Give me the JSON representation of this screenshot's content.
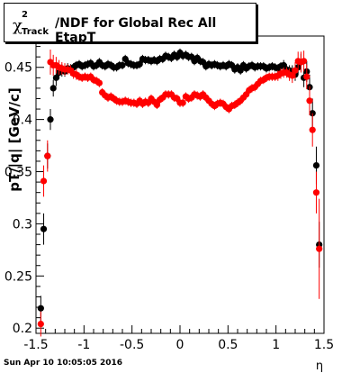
{
  "chart_data": {
    "type": "scatter",
    "title": {
      "symbol": "χ",
      "superscript": "2",
      "subscript": "Track",
      "text": "/NDF for Global Rec All EtapT"
    },
    "ylabel": "pT/|q| [GeV/c]",
    "xlabel": "η",
    "xlim": [
      -1.5,
      1.5
    ],
    "ylim": [
      0.195,
      0.48
    ],
    "x_ticks": [
      "-1.5",
      "-1",
      "-0.5",
      "0",
      "0.5",
      "1",
      "1.5"
    ],
    "x_tick_values": [
      -1.5,
      -1,
      -0.5,
      0,
      0.5,
      1,
      1.5
    ],
    "y_ticks": [
      "0.2",
      "0.25",
      "0.3",
      "0.35",
      "0.4",
      "0.45"
    ],
    "y_tick_values": [
      0.2,
      0.25,
      0.3,
      0.35,
      0.4,
      0.45
    ],
    "series": [
      {
        "color": "#000000",
        "points": [
          [
            -1.45,
            0.219,
            0.012
          ],
          [
            -1.42,
            0.295,
            0.015
          ],
          [
            -1.38,
            0.365,
            0.012
          ],
          [
            -1.35,
            0.4,
            0.01
          ],
          [
            -1.32,
            0.43,
            0.008
          ],
          [
            -1.29,
            0.44,
            0.008
          ],
          [
            -1.26,
            0.445,
            0.006
          ],
          [
            -1.23,
            0.447,
            0.006
          ],
          [
            -1.2,
            0.446,
            0.005
          ],
          [
            -1.17,
            0.449,
            0.005
          ],
          [
            -1.14,
            0.448,
            0.005
          ],
          [
            -1.11,
            0.45,
            0.004
          ],
          [
            -1.08,
            0.452,
            0.004
          ],
          [
            -1.05,
            0.453,
            0.004
          ],
          [
            -1.02,
            0.451,
            0.004
          ],
          [
            -0.99,
            0.452,
            0.004
          ],
          [
            -0.96,
            0.453,
            0.004
          ],
          [
            -0.93,
            0.454,
            0.004
          ],
          [
            -0.9,
            0.451,
            0.004
          ],
          [
            -0.87,
            0.452,
            0.004
          ],
          [
            -0.84,
            0.455,
            0.004
          ],
          [
            -0.81,
            0.452,
            0.004
          ],
          [
            -0.78,
            0.451,
            0.004
          ],
          [
            -0.75,
            0.453,
            0.004
          ],
          [
            -0.72,
            0.452,
            0.004
          ],
          [
            -0.69,
            0.45,
            0.004
          ],
          [
            -0.66,
            0.45,
            0.004
          ],
          [
            -0.63,
            0.452,
            0.004
          ],
          [
            -0.6,
            0.452,
            0.004
          ],
          [
            -0.57,
            0.458,
            0.004
          ],
          [
            -0.54,
            0.454,
            0.004
          ],
          [
            -0.51,
            0.453,
            0.004
          ],
          [
            -0.48,
            0.452,
            0.004
          ],
          [
            -0.45,
            0.452,
            0.004
          ],
          [
            -0.42,
            0.453,
            0.004
          ],
          [
            -0.39,
            0.458,
            0.004
          ],
          [
            -0.36,
            0.457,
            0.004
          ],
          [
            -0.33,
            0.457,
            0.004
          ],
          [
            -0.3,
            0.456,
            0.004
          ],
          [
            -0.27,
            0.457,
            0.004
          ],
          [
            -0.24,
            0.456,
            0.004
          ],
          [
            -0.21,
            0.458,
            0.004
          ],
          [
            -0.18,
            0.458,
            0.004
          ],
          [
            -0.15,
            0.461,
            0.004
          ],
          [
            -0.12,
            0.46,
            0.004
          ],
          [
            -0.09,
            0.459,
            0.004
          ],
          [
            -0.06,
            0.462,
            0.004
          ],
          [
            -0.03,
            0.46,
            0.004
          ],
          [
            0.0,
            0.464,
            0.004
          ],
          [
            0.03,
            0.461,
            0.004
          ],
          [
            0.06,
            0.462,
            0.004
          ],
          [
            0.09,
            0.46,
            0.004
          ],
          [
            0.12,
            0.46,
            0.004
          ],
          [
            0.15,
            0.456,
            0.004
          ],
          [
            0.18,
            0.459,
            0.004
          ],
          [
            0.21,
            0.456,
            0.004
          ],
          [
            0.24,
            0.455,
            0.004
          ],
          [
            0.27,
            0.451,
            0.004
          ],
          [
            0.3,
            0.453,
            0.004
          ],
          [
            0.33,
            0.452,
            0.004
          ],
          [
            0.36,
            0.453,
            0.004
          ],
          [
            0.39,
            0.452,
            0.004
          ],
          [
            0.42,
            0.451,
            0.004
          ],
          [
            0.45,
            0.452,
            0.004
          ],
          [
            0.48,
            0.451,
            0.004
          ],
          [
            0.51,
            0.453,
            0.004
          ],
          [
            0.54,
            0.452,
            0.004
          ],
          [
            0.57,
            0.448,
            0.004
          ],
          [
            0.6,
            0.45,
            0.004
          ],
          [
            0.63,
            0.447,
            0.004
          ],
          [
            0.66,
            0.452,
            0.004
          ],
          [
            0.69,
            0.449,
            0.004
          ],
          [
            0.72,
            0.451,
            0.004
          ],
          [
            0.75,
            0.452,
            0.004
          ],
          [
            0.78,
            0.45,
            0.004
          ],
          [
            0.81,
            0.451,
            0.004
          ],
          [
            0.84,
            0.451,
            0.004
          ],
          [
            0.87,
            0.451,
            0.004
          ],
          [
            0.9,
            0.449,
            0.004
          ],
          [
            0.93,
            0.45,
            0.004
          ],
          [
            0.96,
            0.451,
            0.004
          ],
          [
            0.99,
            0.45,
            0.004
          ],
          [
            1.02,
            0.449,
            0.004
          ],
          [
            1.05,
            0.451,
            0.004
          ],
          [
            1.08,
            0.452,
            0.005
          ],
          [
            1.11,
            0.448,
            0.005
          ],
          [
            1.14,
            0.447,
            0.005
          ],
          [
            1.17,
            0.446,
            0.006
          ],
          [
            1.2,
            0.443,
            0.006
          ],
          [
            1.23,
            0.45,
            0.007
          ],
          [
            1.26,
            0.455,
            0.008
          ],
          [
            1.29,
            0.44,
            0.009
          ],
          [
            1.32,
            0.446,
            0.01
          ],
          [
            1.35,
            0.431,
            0.012
          ],
          [
            1.38,
            0.406,
            0.014
          ],
          [
            1.42,
            0.356,
            0.018
          ],
          [
            1.45,
            0.28,
            0.022
          ]
        ]
      },
      {
        "color": "#ff0000",
        "points": [
          [
            -1.45,
            0.204,
            0.012
          ],
          [
            -1.42,
            0.341,
            0.015
          ],
          [
            -1.38,
            0.365,
            0.015
          ],
          [
            -1.35,
            0.455,
            0.012
          ],
          [
            -1.32,
            0.452,
            0.01
          ],
          [
            -1.29,
            0.452,
            0.008
          ],
          [
            -1.26,
            0.45,
            0.007
          ],
          [
            -1.23,
            0.449,
            0.006
          ],
          [
            -1.2,
            0.448,
            0.006
          ],
          [
            -1.17,
            0.448,
            0.005
          ],
          [
            -1.14,
            0.447,
            0.005
          ],
          [
            -1.11,
            0.444,
            0.005
          ],
          [
            -1.08,
            0.443,
            0.005
          ],
          [
            -1.05,
            0.441,
            0.004
          ],
          [
            -1.02,
            0.44,
            0.004
          ],
          [
            -0.99,
            0.441,
            0.004
          ],
          [
            -0.96,
            0.44,
            0.004
          ],
          [
            -0.93,
            0.441,
            0.004
          ],
          [
            -0.9,
            0.438,
            0.004
          ],
          [
            -0.87,
            0.437,
            0.004
          ],
          [
            -0.84,
            0.435,
            0.004
          ],
          [
            -0.81,
            0.426,
            0.004
          ],
          [
            -0.78,
            0.423,
            0.004
          ],
          [
            -0.75,
            0.421,
            0.004
          ],
          [
            -0.72,
            0.422,
            0.004
          ],
          [
            -0.69,
            0.42,
            0.004
          ],
          [
            -0.66,
            0.418,
            0.004
          ],
          [
            -0.63,
            0.417,
            0.004
          ],
          [
            -0.6,
            0.417,
            0.004
          ],
          [
            -0.57,
            0.418,
            0.004
          ],
          [
            -0.54,
            0.417,
            0.004
          ],
          [
            -0.51,
            0.416,
            0.004
          ],
          [
            -0.48,
            0.416,
            0.004
          ],
          [
            -0.45,
            0.415,
            0.004
          ],
          [
            -0.42,
            0.418,
            0.004
          ],
          [
            -0.39,
            0.415,
            0.004
          ],
          [
            -0.36,
            0.417,
            0.004
          ],
          [
            -0.33,
            0.416,
            0.004
          ],
          [
            -0.3,
            0.42,
            0.004
          ],
          [
            -0.27,
            0.417,
            0.004
          ],
          [
            -0.24,
            0.414,
            0.004
          ],
          [
            -0.21,
            0.419,
            0.004
          ],
          [
            -0.18,
            0.421,
            0.004
          ],
          [
            -0.15,
            0.424,
            0.004
          ],
          [
            -0.12,
            0.424,
            0.004
          ],
          [
            -0.09,
            0.424,
            0.004
          ],
          [
            -0.06,
            0.421,
            0.004
          ],
          [
            -0.03,
            0.42,
            0.004
          ],
          [
            0.0,
            0.416,
            0.004
          ],
          [
            0.03,
            0.416,
            0.004
          ],
          [
            0.06,
            0.422,
            0.004
          ],
          [
            0.09,
            0.42,
            0.004
          ],
          [
            0.12,
            0.421,
            0.004
          ],
          [
            0.15,
            0.424,
            0.004
          ],
          [
            0.18,
            0.423,
            0.004
          ],
          [
            0.21,
            0.422,
            0.004
          ],
          [
            0.24,
            0.424,
            0.004
          ],
          [
            0.27,
            0.421,
            0.004
          ],
          [
            0.3,
            0.418,
            0.004
          ],
          [
            0.33,
            0.415,
            0.004
          ],
          [
            0.36,
            0.413,
            0.004
          ],
          [
            0.39,
            0.415,
            0.004
          ],
          [
            0.42,
            0.416,
            0.004
          ],
          [
            0.45,
            0.415,
            0.004
          ],
          [
            0.48,
            0.412,
            0.004
          ],
          [
            0.51,
            0.41,
            0.004
          ],
          [
            0.54,
            0.413,
            0.004
          ],
          [
            0.57,
            0.414,
            0.004
          ],
          [
            0.6,
            0.416,
            0.004
          ],
          [
            0.63,
            0.418,
            0.004
          ],
          [
            0.66,
            0.421,
            0.004
          ],
          [
            0.69,
            0.424,
            0.004
          ],
          [
            0.72,
            0.428,
            0.004
          ],
          [
            0.75,
            0.43,
            0.004
          ],
          [
            0.78,
            0.431,
            0.004
          ],
          [
            0.81,
            0.434,
            0.004
          ],
          [
            0.84,
            0.437,
            0.004
          ],
          [
            0.87,
            0.438,
            0.004
          ],
          [
            0.9,
            0.44,
            0.004
          ],
          [
            0.93,
            0.441,
            0.004
          ],
          [
            0.96,
            0.441,
            0.004
          ],
          [
            0.99,
            0.441,
            0.004
          ],
          [
            1.02,
            0.442,
            0.005
          ],
          [
            1.05,
            0.444,
            0.005
          ],
          [
            1.08,
            0.445,
            0.005
          ],
          [
            1.11,
            0.445,
            0.005
          ],
          [
            1.14,
            0.443,
            0.006
          ],
          [
            1.17,
            0.442,
            0.007
          ],
          [
            1.2,
            0.447,
            0.008
          ],
          [
            1.23,
            0.456,
            0.009
          ],
          [
            1.26,
            0.455,
            0.01
          ],
          [
            1.29,
            0.456,
            0.01
          ],
          [
            1.32,
            0.441,
            0.012
          ],
          [
            1.35,
            0.418,
            0.014
          ],
          [
            1.38,
            0.39,
            0.016
          ],
          [
            1.42,
            0.33,
            0.02
          ],
          [
            1.45,
            0.276,
            0.048
          ]
        ]
      }
    ]
  },
  "footer": {
    "datetime": "Sun Apr 10 10:05:05 2016"
  }
}
